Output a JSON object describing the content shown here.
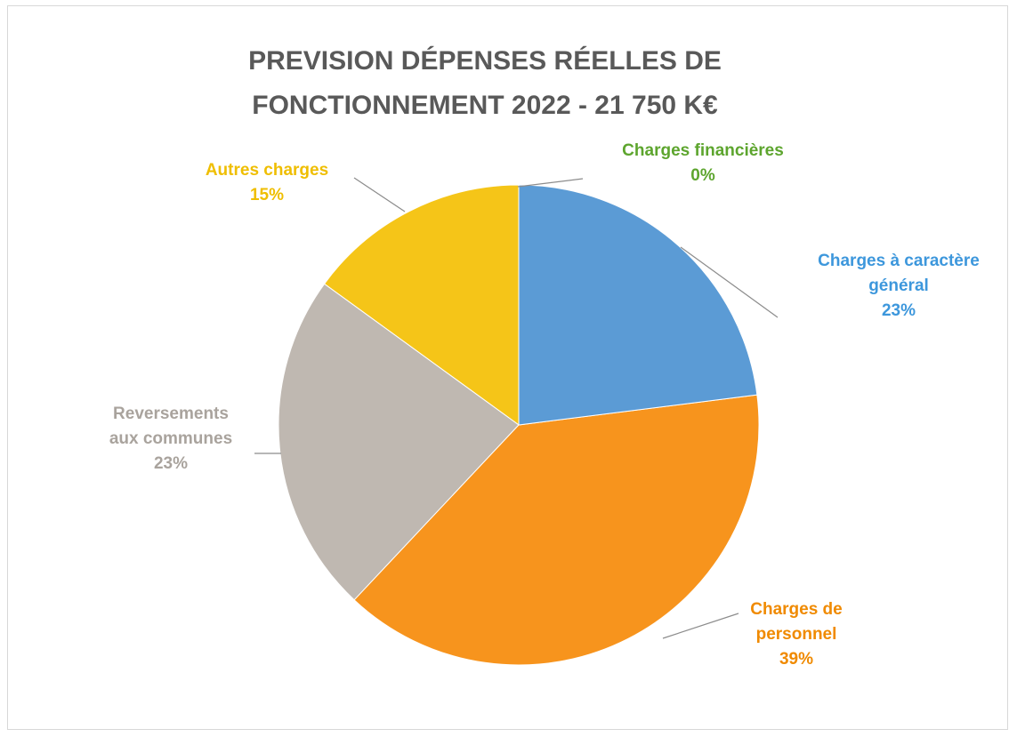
{
  "chart_data": {
    "type": "pie",
    "title": "PREVISION DÉPENSES RÉELLES DE FONCTIONNEMENT 2022 - 21 750 K€",
    "categories": [
      "Charges à caractère général",
      "Charges de personnel",
      "Reversements aux communes",
      "Autres charges",
      "Charges financières"
    ],
    "values": [
      23,
      39,
      23,
      15,
      0
    ],
    "value_labels": [
      "23%",
      "39%",
      "23%",
      "15%",
      "0%"
    ],
    "colors": [
      "#5b9bd5",
      "#f7941d",
      "#bfb8b1",
      "#f5c518",
      "#70ad47"
    ]
  }
}
